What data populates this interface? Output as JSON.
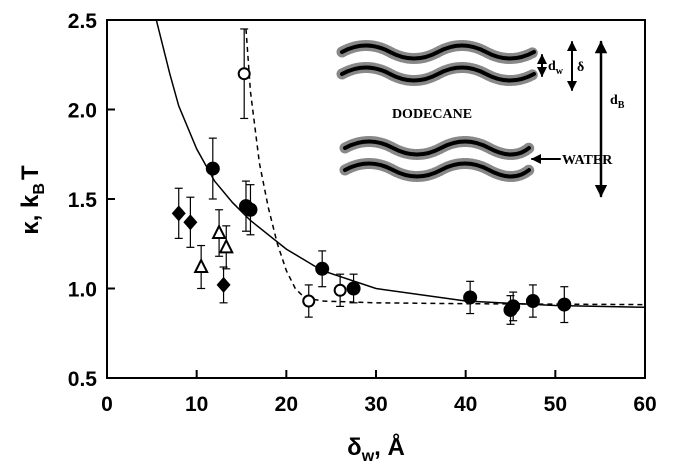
{
  "chart_data": {
    "type": "scatter",
    "xlabel": [
      "δ",
      "w",
      ", Å"
    ],
    "ylabel": [
      "κ, k",
      "B",
      "T"
    ],
    "xlim": [
      0,
      60
    ],
    "ylim": [
      0.5,
      2.5
    ],
    "xticks": [
      0,
      10,
      20,
      30,
      40,
      50,
      60
    ],
    "yticks": [
      0.5,
      {
        "value": 1,
        "label": "1.0"
      },
      1.5,
      {
        "value": 2,
        "label": "2.0"
      },
      2.5
    ],
    "series": [
      {
        "marker": "circle",
        "color": "#000000",
        "x": [
          11.8,
          15.5,
          16,
          24,
          27.5,
          40.5,
          45,
          45.3,
          47.5,
          51
        ],
        "values": [
          1.67,
          1.46,
          1.44,
          1.11,
          1.0,
          0.95,
          0.88,
          0.9,
          0.93,
          0.91
        ],
        "errors": [
          0.17,
          0.14,
          0.14,
          0.1,
          0.08,
          0.09,
          0.08,
          0.08,
          0.09,
          0.1
        ]
      },
      {
        "marker": "circle-open",
        "color": "#000000",
        "x": [
          15.3,
          22.5,
          26
        ],
        "values": [
          2.2,
          0.93,
          0.99
        ],
        "errors": [
          0.25,
          0.09,
          0.09
        ]
      },
      {
        "marker": "diamond",
        "color": "#000000",
        "x": [
          8,
          9.3,
          13
        ],
        "values": [
          1.42,
          1.37,
          1.02
        ],
        "errors": [
          0.14,
          0.14,
          0.1
        ]
      },
      {
        "marker": "triangle-open",
        "color": "#000000",
        "x": [
          10.5,
          12.5,
          13.3
        ],
        "values": [
          1.12,
          1.31,
          1.23
        ],
        "errors": [
          0.12,
          0.13,
          0.12
        ]
      },
      {
        "marker": "line",
        "color": "#000000",
        "x": [
          5.5,
          7,
          8,
          10,
          12,
          14,
          16,
          20,
          24,
          30,
          40,
          50,
          60
        ],
        "values": [
          2.5,
          2.2,
          2.02,
          1.78,
          1.6,
          1.48,
          1.38,
          1.22,
          1.1,
          1.0,
          0.93,
          0.905,
          0.895
        ]
      },
      {
        "marker": "dashed",
        "color": "#000000",
        "x": [
          15.5,
          16,
          17,
          18,
          19,
          20,
          21,
          22,
          24,
          30,
          40,
          60
        ],
        "values": [
          2.45,
          2.1,
          1.7,
          1.45,
          1.25,
          1.1,
          1.0,
          0.95,
          0.93,
          0.92,
          0.915,
          0.91
        ]
      }
    ],
    "inset": {
      "top_label": "DODECANE",
      "side_label": "WATER",
      "dw": [
        "d",
        "w"
      ],
      "delta": "δ",
      "dB": [
        "d",
        "B"
      ]
    }
  }
}
